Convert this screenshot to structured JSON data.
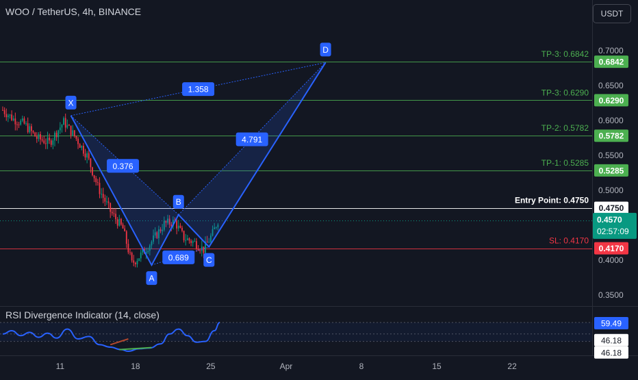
{
  "header": {
    "title": "WOO / TetherUS, 4h, BINANCE",
    "currency_button": "USDT"
  },
  "chart_data": [
    {
      "type": "candlestick",
      "symbol": "WOO / TetherUS",
      "interval": "4h",
      "exchange": "BINANCE",
      "ylim": [
        0.33,
        0.73
      ],
      "y_ticks": [
        "0.7000",
        "0.6500",
        "0.6000",
        "0.5500",
        "0.5000",
        "0.4000",
        "0.3500"
      ],
      "x_ticks": [
        {
          "label": "11",
          "bar": 32
        },
        {
          "label": "18",
          "bar": 74
        },
        {
          "label": "25",
          "bar": 116
        },
        {
          "label": "Apr",
          "bar": 158
        },
        {
          "label": "8",
          "bar": 200
        },
        {
          "label": "15",
          "bar": 242
        },
        {
          "label": "22",
          "bar": 284
        }
      ],
      "candles_approx": [
        {
          "bar": 0,
          "price": 0.615
        },
        {
          "bar": 6,
          "price": 0.602
        },
        {
          "bar": 12,
          "price": 0.595
        },
        {
          "bar": 19,
          "price": 0.575
        },
        {
          "bar": 26,
          "price": 0.568
        },
        {
          "bar": 34,
          "price": 0.598
        },
        {
          "bar": 40,
          "price": 0.578
        },
        {
          "bar": 47,
          "price": 0.55
        },
        {
          "bar": 53,
          "price": 0.505
        },
        {
          "bar": 60,
          "price": 0.47
        },
        {
          "bar": 67,
          "price": 0.445
        },
        {
          "bar": 72,
          "price": 0.395
        },
        {
          "bar": 78,
          "price": 0.41
        },
        {
          "bar": 84,
          "price": 0.43
        },
        {
          "bar": 90,
          "price": 0.452
        },
        {
          "bar": 96,
          "price": 0.455
        },
        {
          "bar": 101,
          "price": 0.432
        },
        {
          "bar": 107,
          "price": 0.425
        },
        {
          "bar": 112,
          "price": 0.415
        },
        {
          "bar": 117,
          "price": 0.438
        },
        {
          "bar": 120,
          "price": 0.457
        }
      ],
      "levels": [
        {
          "name": "TP-3",
          "label": "TP-3: 0.6842",
          "price": 0.6842,
          "tag": "0.6842",
          "color": "#4caf50"
        },
        {
          "name": "TP-3",
          "label": "TP-3: 0.6290",
          "price": 0.629,
          "tag": "0.6290",
          "color": "#4caf50"
        },
        {
          "name": "TP-2",
          "label": "TP-2: 0.5782",
          "price": 0.5782,
          "tag": "0.5782",
          "color": "#4caf50"
        },
        {
          "name": "TP-1",
          "label": "TP-1: 0.5285",
          "price": 0.5285,
          "tag": "0.5285",
          "color": "#4caf50"
        },
        {
          "name": "Entry Point",
          "label": "Entry Point: 0.4750",
          "price": 0.475,
          "tag": "0.4750",
          "color": "#ffffff"
        },
        {
          "name": "SL",
          "label": "SL: 0.4170",
          "price": 0.417,
          "tag": "0.4170",
          "color": "#f23645"
        }
      ],
      "current_price": {
        "value": "0.4570",
        "countdown": "02:57:09",
        "price": 0.457,
        "color": "#089981"
      },
      "harmonic_pattern": {
        "points": [
          {
            "label": "X",
            "bar": 38,
            "price": 0.607
          },
          {
            "label": "A",
            "bar": 83,
            "price": 0.393
          },
          {
            "label": "B",
            "bar": 98,
            "price": 0.465
          },
          {
            "label": "C",
            "bar": 115,
            "price": 0.419
          },
          {
            "label": "D",
            "bar": 180,
            "price": 0.683
          }
        ],
        "ratios": [
          {
            "label": "1.358",
            "bar": 109,
            "price": 0.645
          },
          {
            "label": "0.376",
            "bar": 67,
            "price": 0.535
          },
          {
            "label": "4.791",
            "bar": 139,
            "price": 0.573
          },
          {
            "label": "0.689",
            "bar": 98,
            "price": 0.404
          }
        ],
        "color": "#2962ff"
      },
      "legend": "bottom pane"
    },
    {
      "type": "line",
      "title": "RSI Divergence Indicator (14, close)",
      "ylim": [
        20,
        80
      ],
      "levels": [
        "59.49",
        "46.18",
        "46.18"
      ],
      "current_value": "59.49",
      "series": [
        {
          "values": [
            {
              "bar": 0,
              "v": 46
            },
            {
              "bar": 5,
              "v": 50
            },
            {
              "bar": 10,
              "v": 44
            },
            {
              "bar": 15,
              "v": 48
            },
            {
              "bar": 20,
              "v": 42
            },
            {
              "bar": 25,
              "v": 47
            },
            {
              "bar": 30,
              "v": 41
            },
            {
              "bar": 36,
              "v": 52
            },
            {
              "bar": 42,
              "v": 40
            },
            {
              "bar": 48,
              "v": 43
            },
            {
              "bar": 54,
              "v": 33
            },
            {
              "bar": 60,
              "v": 30
            },
            {
              "bar": 66,
              "v": 27
            },
            {
              "bar": 70,
              "v": 25
            },
            {
              "bar": 76,
              "v": 28
            },
            {
              "bar": 82,
              "v": 29
            },
            {
              "bar": 88,
              "v": 34
            },
            {
              "bar": 93,
              "v": 46
            },
            {
              "bar": 98,
              "v": 52
            },
            {
              "bar": 103,
              "v": 44
            },
            {
              "bar": 108,
              "v": 36
            },
            {
              "bar": 113,
              "v": 37
            },
            {
              "bar": 118,
              "v": 50
            },
            {
              "bar": 121,
              "v": 60
            }
          ],
          "color": "#2962ff"
        }
      ],
      "divergences": [
        {
          "from": {
            "bar": 65,
            "v": 27
          },
          "to": {
            "bar": 83,
            "v": 29.5
          },
          "color": "#4caf50"
        },
        {
          "from": {
            "bar": 60,
            "v": 33
          },
          "to": {
            "bar": 70,
            "v": 40
          },
          "color": "#b2482e"
        }
      ]
    }
  ]
}
